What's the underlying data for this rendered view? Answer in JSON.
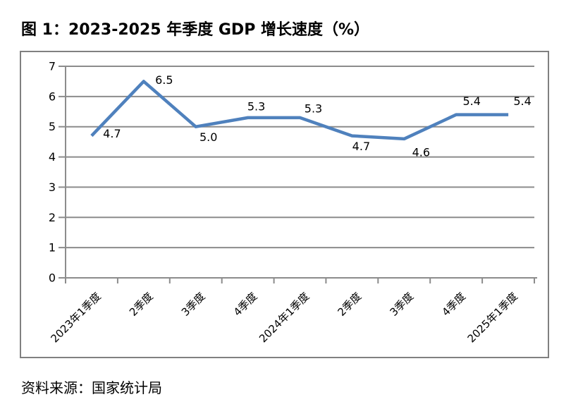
{
  "title": "图 1：2023-2025 年季度 GDP 增长速度（%）",
  "source_note": "资料来源：国家统计局",
  "colors": {
    "line": "#4F81BD",
    "grid": "#8C8C8C",
    "frame": "#808080",
    "text": "#000000"
  },
  "chart_data": {
    "type": "line",
    "title": "图 1：2023-2025 年季度 GDP 增长速度（%）",
    "categories": [
      "2023年1季度",
      "2季度",
      "3季度",
      "4季度",
      "2024年1季度",
      "2季度",
      "3季度",
      "4季度",
      "2025年1季度"
    ],
    "values": [
      4.7,
      6.5,
      5.0,
      5.3,
      5.3,
      4.7,
      4.6,
      5.4,
      5.4
    ],
    "data_labels": [
      "4.7",
      "6.5",
      "5.0",
      "5.3",
      "5.3",
      "4.7",
      "4.6",
      "5.4",
      "5.4"
    ],
    "xlabel": "",
    "ylabel": "",
    "ylim": [
      0,
      7
    ],
    "ytick_interval": 1,
    "yticks": [
      "0",
      "1",
      "2",
      "3",
      "4",
      "5",
      "6",
      "7"
    ],
    "grid": true,
    "legend": "none",
    "label_offsets": {
      "dx": [
        29,
        29,
        18,
        12,
        19,
        13,
        24,
        22,
        20
      ],
      "dy": [
        -3,
        -2,
        15,
        -16,
        -13,
        15,
        19,
        -19,
        -19
      ]
    }
  }
}
